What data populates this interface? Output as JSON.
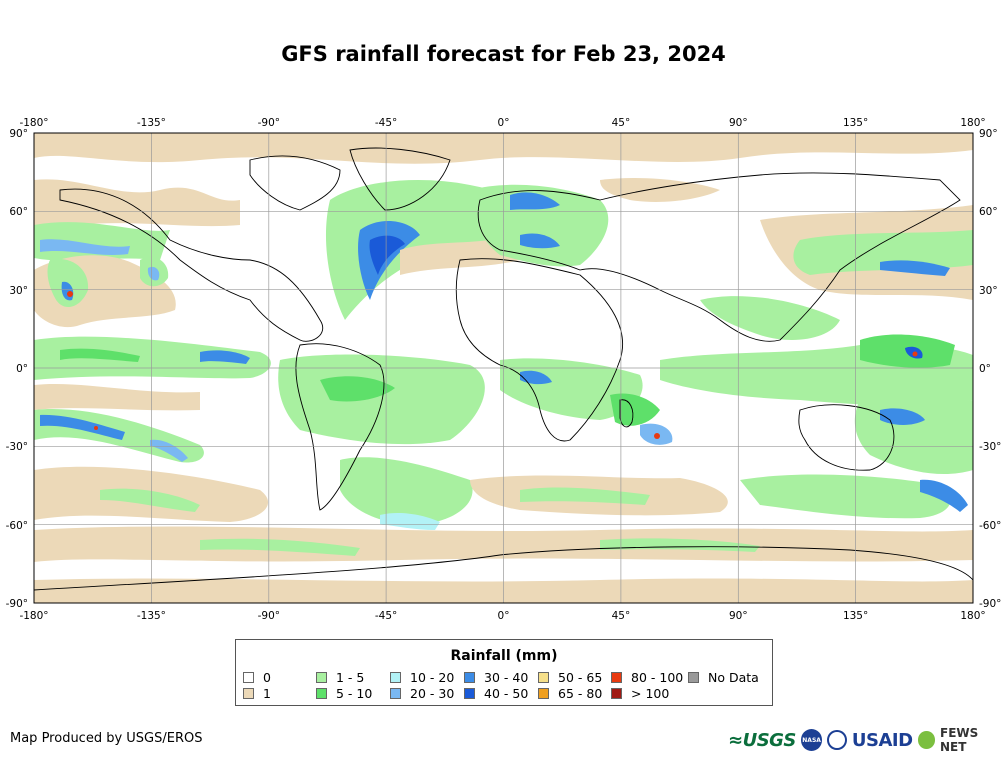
{
  "title": "GFS rainfall forecast for Feb 23, 2024",
  "map": {
    "lon_ticks": [
      "-180°",
      "-135°",
      "-90°",
      "-45°",
      "0°",
      "45°",
      "90°",
      "135°",
      "180°"
    ],
    "lat_ticks": [
      "90°",
      "60°",
      "30°",
      "0°",
      "-30°",
      "-60°",
      "-90°"
    ],
    "lon_range": [
      -180,
      180
    ],
    "lat_range": [
      -90,
      90
    ],
    "grid": true
  },
  "legend": {
    "title": "Rainfall (mm)",
    "items": [
      {
        "label": "0",
        "color": "#ffffff"
      },
      {
        "label": "1",
        "color": "#ecd9b8"
      },
      {
        "label": "1 - 5",
        "color": "#a8f0a0"
      },
      {
        "label": "5 - 10",
        "color": "#5ee06a"
      },
      {
        "label": "10 - 20",
        "color": "#b2f2f6"
      },
      {
        "label": "20 - 30",
        "color": "#7ab8f2"
      },
      {
        "label": "30 - 40",
        "color": "#3c8ce6"
      },
      {
        "label": "40 - 50",
        "color": "#1a5ad8"
      },
      {
        "label": "50 - 65",
        "color": "#f6e08a"
      },
      {
        "label": "65 - 80",
        "color": "#f0a020"
      },
      {
        "label": "80 - 100",
        "color": "#e83a10"
      },
      {
        "label": "> 100",
        "color": "#a01a14"
      },
      {
        "label": "No Data",
        "color": "#9a9a9a"
      }
    ]
  },
  "credit": "Map Produced by USGS/EROS",
  "logos": {
    "usgs": "≈USGS",
    "nasa": "NASA",
    "usaid": "USAID",
    "fews": "FEWS NET"
  }
}
